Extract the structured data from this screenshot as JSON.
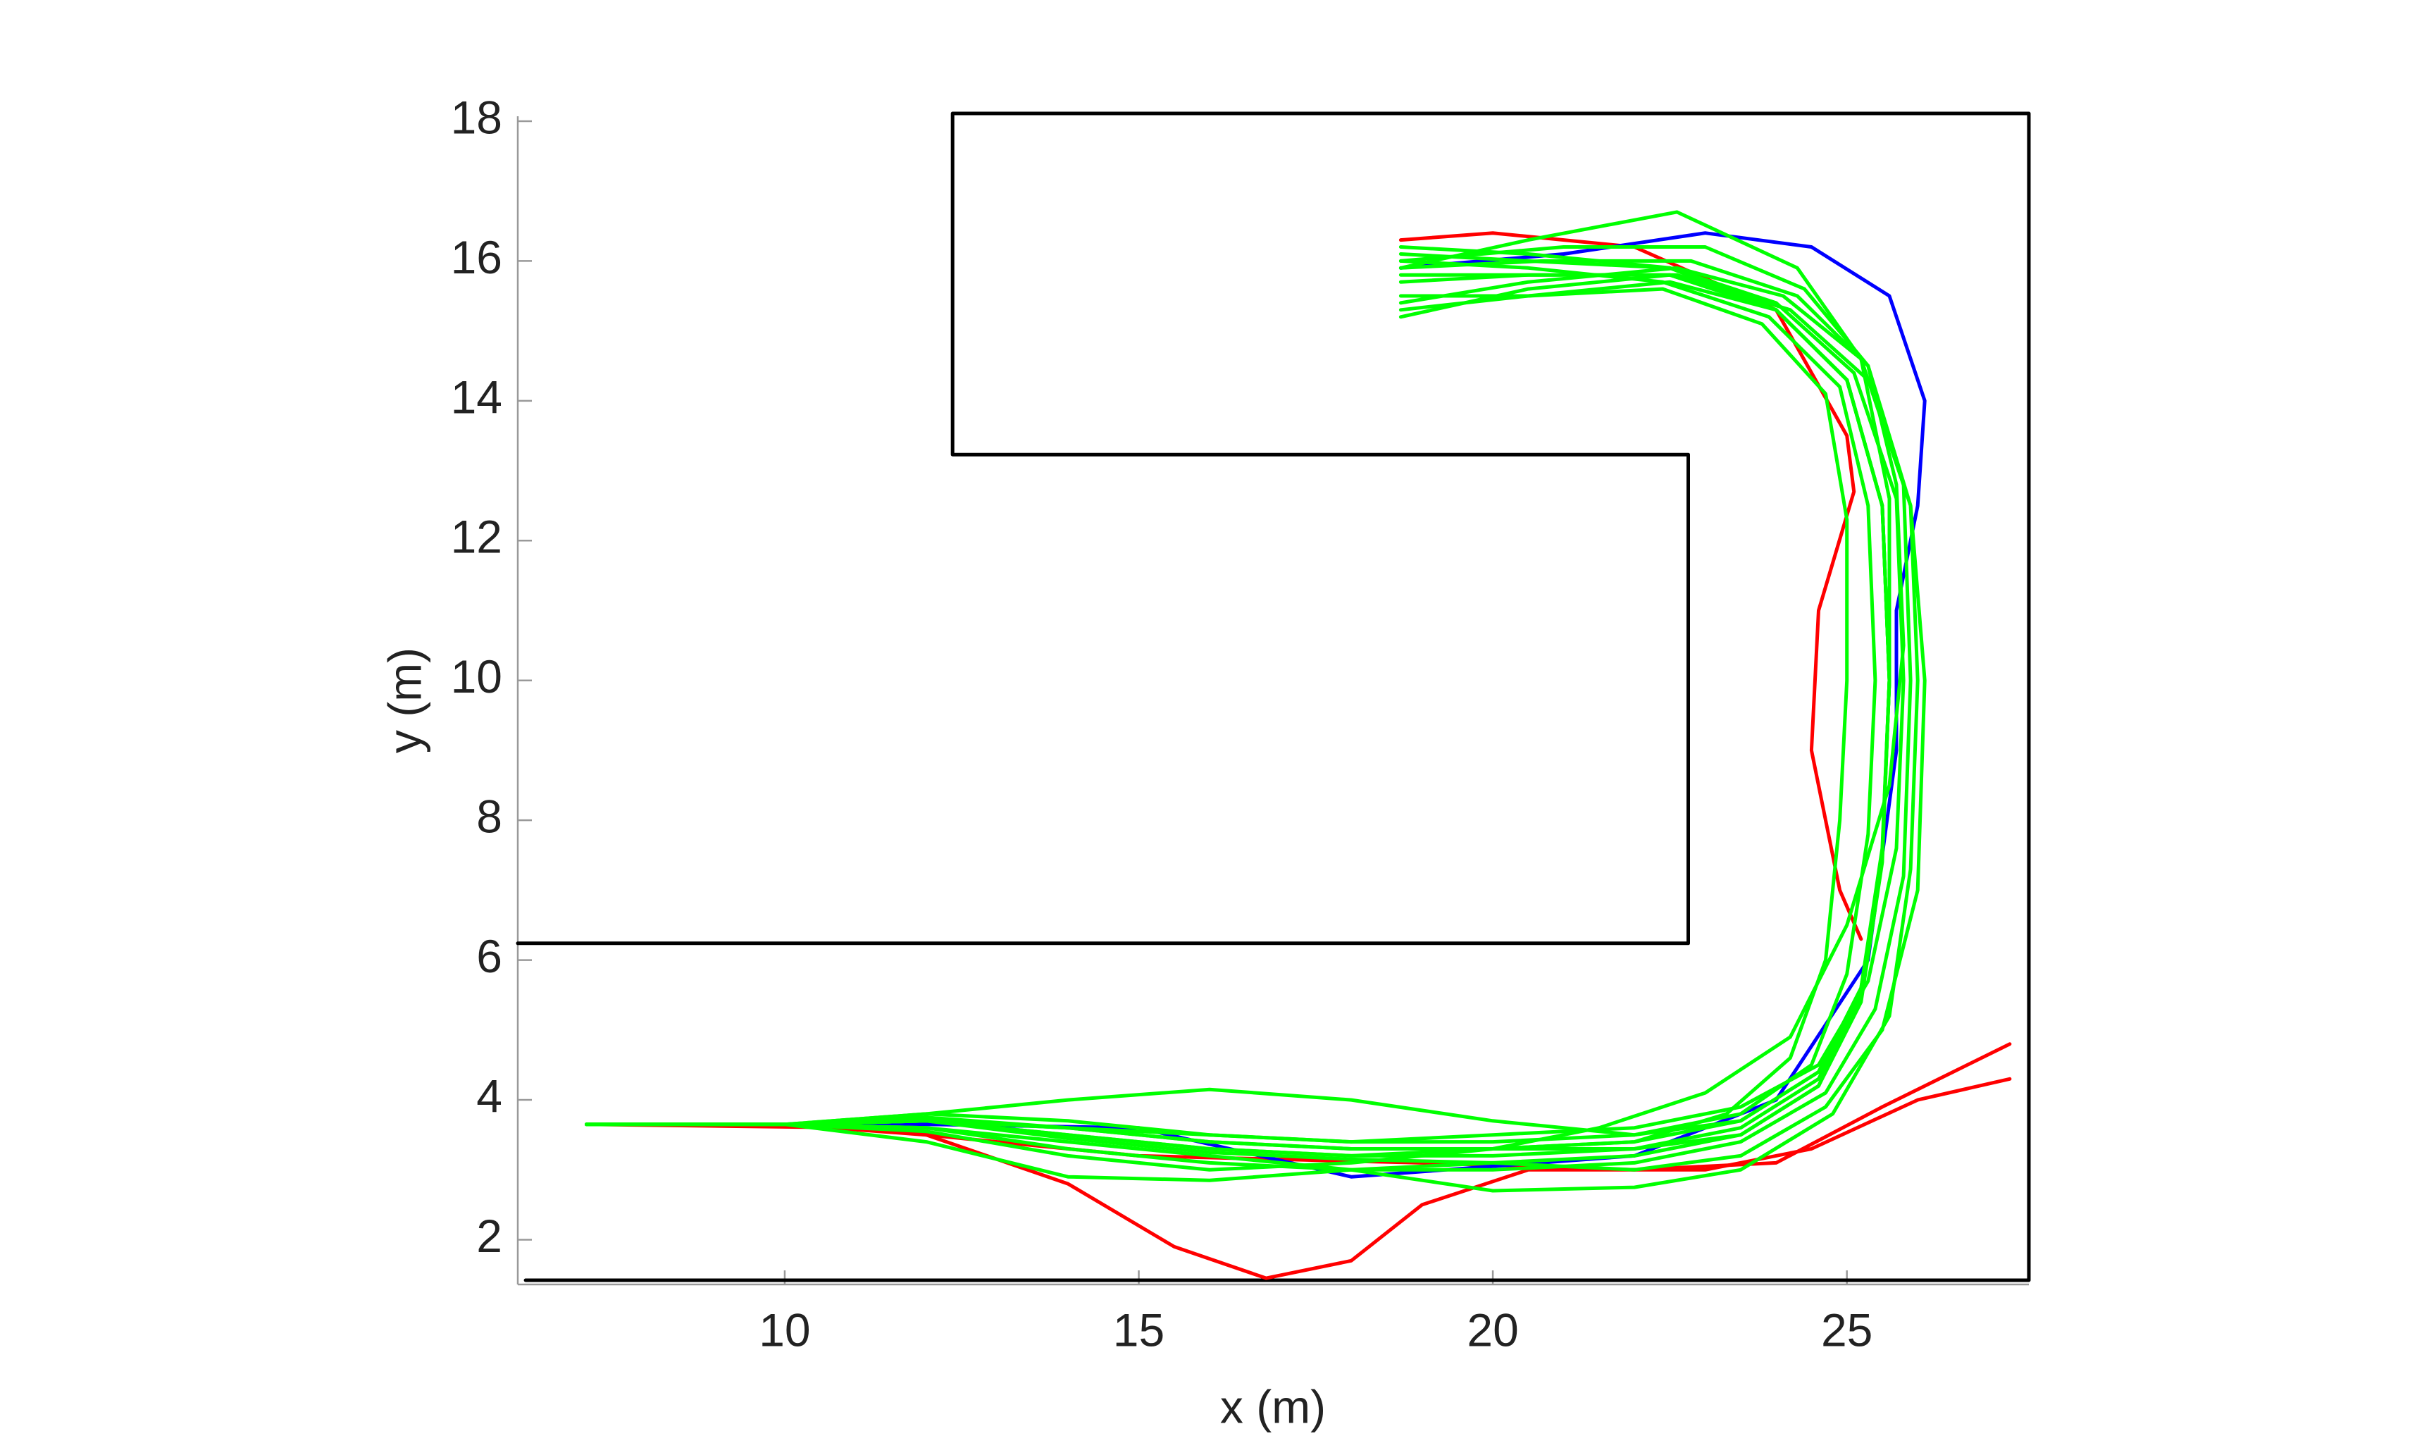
{
  "chart_data": {
    "type": "line",
    "xlabel": "x (m)",
    "ylabel": "y (m)",
    "xlim": [
      6.23,
      27.57
    ],
    "ylim": [
      1.36,
      18.07
    ],
    "xticks": [
      10,
      15,
      20,
      25
    ],
    "yticks": [
      2,
      4,
      6,
      8,
      10,
      12,
      14,
      16,
      18
    ],
    "grid": false,
    "series": [
      {
        "color": "#000000",
        "x": [
          6.23,
          22.76,
          22.76,
          12.37,
          12.37,
          27.57,
          27.57,
          6.34
        ],
        "values": [
          6.24,
          6.24,
          13.23,
          13.23,
          18.11,
          18.11,
          1.42,
          1.42
        ]
      },
      {
        "color": "#ff0000",
        "x": [
          7.2,
          10,
          12,
          14,
          15.5,
          16.8,
          18,
          19,
          20.5,
          23,
          24.5,
          26,
          27.3
        ],
        "values": [
          3.65,
          3.65,
          3.5,
          2.8,
          1.9,
          1.45,
          1.7,
          2.5,
          3.0,
          3.0,
          3.3,
          4.0,
          4.3
        ]
      },
      {
        "color": "#ff0000",
        "x": [
          7.2,
          11,
          15,
          19,
          22,
          24,
          25.5,
          27.3
        ],
        "values": [
          3.65,
          3.6,
          3.2,
          3.1,
          3.0,
          3.1,
          3.9,
          4.8
        ]
      },
      {
        "color": "#ff0000",
        "x": [
          18.7,
          20,
          22,
          24,
          25,
          25.1,
          24.6,
          24.5,
          24.9,
          25.2
        ],
        "values": [
          16.3,
          16.4,
          16.2,
          15.3,
          13.5,
          12.7,
          11,
          9,
          7,
          6.3
        ]
      },
      {
        "color": "#0000ff",
        "x": [
          18.7,
          21,
          23,
          24.5,
          25.6,
          26.1,
          26,
          25.7,
          25.7,
          25.3,
          24,
          22,
          18,
          15,
          12,
          7.2
        ],
        "values": [
          15.9,
          16.1,
          16.4,
          16.2,
          15.5,
          14,
          12.5,
          11,
          9,
          6,
          4,
          3.2,
          2.9,
          3.6,
          3.65,
          3.65
        ]
      },
      {
        "color": "#00ff00",
        "x": [
          7.2,
          10,
          12,
          14,
          16,
          18,
          20,
          22,
          23.5,
          24.6,
          25.2,
          25.5,
          25.6,
          25.5,
          25.0,
          24.0,
          22.5,
          20.5,
          18.7
        ],
        "values": [
          3.65,
          3.65,
          3.7,
          3.5,
          3.3,
          3.2,
          3.2,
          3.3,
          3.6,
          4.3,
          5.5,
          7.5,
          10,
          12.5,
          14.3,
          15.3,
          15.8,
          15.8,
          15.8
        ]
      },
      {
        "color": "#00ff00",
        "x": [
          7.2,
          10,
          12,
          14,
          16,
          18,
          20,
          22,
          23.5,
          24.5,
          25.0,
          25.3,
          25.4,
          25.3,
          24.9,
          23.9,
          22.4,
          20.5,
          18.7
        ],
        "values": [
          3.65,
          3.65,
          3.8,
          3.7,
          3.5,
          3.4,
          3.4,
          3.5,
          3.8,
          4.5,
          5.8,
          7.8,
          10,
          12.5,
          14.2,
          15.2,
          15.7,
          15.9,
          16.0
        ]
      },
      {
        "color": "#00ff00",
        "x": [
          7.2,
          10,
          12,
          14,
          16,
          18,
          20,
          22,
          23.5,
          24.7,
          25.4,
          25.8,
          25.9,
          25.8,
          25.2,
          24.1,
          22.6,
          20.5,
          18.7
        ],
        "values": [
          3.65,
          3.65,
          3.6,
          3.3,
          3.1,
          3.0,
          3.0,
          3.1,
          3.4,
          4.1,
          5.3,
          7.2,
          10,
          12.8,
          14.6,
          15.5,
          15.9,
          15.7,
          15.4
        ]
      },
      {
        "color": "#00ff00",
        "x": [
          7.2,
          10,
          12,
          14,
          16,
          18,
          20,
          22,
          23.5,
          24.6,
          25.2,
          25.5,
          25.6,
          25.5,
          25.0,
          24.0,
          22.5,
          20.5,
          18.7
        ],
        "values": [
          3.65,
          3.65,
          3.8,
          4.0,
          4.15,
          4.0,
          3.7,
          3.5,
          3.7,
          4.4,
          5.6,
          7.6,
          10,
          12.5,
          14.3,
          15.3,
          15.9,
          16.0,
          16.1
        ]
      },
      {
        "color": "#00ff00",
        "x": [
          7.2,
          10,
          12,
          14,
          16,
          18,
          20,
          22,
          23.5,
          24.6,
          25.2,
          25.5,
          25.6,
          25.5,
          25.0,
          24.0,
          22.5,
          20.5,
          18.7
        ],
        "values": [
          3.65,
          3.65,
          3.4,
          2.9,
          2.85,
          3.0,
          3.1,
          3.2,
          3.5,
          4.2,
          5.4,
          7.4,
          10,
          12.5,
          14.3,
          15.3,
          15.8,
          15.6,
          15.2
        ]
      },
      {
        "color": "#00ff00",
        "x": [
          7.2,
          10,
          12,
          14,
          16,
          18,
          20,
          21.5,
          23,
          24.2,
          25.0,
          25.6,
          25.8,
          25.7,
          25.3,
          24.4,
          23.0,
          21,
          18.7
        ],
        "values": [
          3.65,
          3.65,
          3.7,
          3.5,
          3.3,
          3.2,
          3.3,
          3.6,
          4.1,
          4.9,
          6.5,
          8.5,
          10.5,
          12.8,
          14.5,
          15.6,
          16.2,
          16.2,
          16.0
        ]
      },
      {
        "color": "#00ff00",
        "x": [
          7.2,
          10,
          12,
          14,
          16,
          18,
          20,
          22,
          23.5,
          24.8,
          25.6,
          25.9,
          26.0,
          25.9,
          25.3,
          24.2,
          22.6,
          20.5,
          18.7
        ],
        "values": [
          3.65,
          3.65,
          3.6,
          3.4,
          3.2,
          3.0,
          2.7,
          2.75,
          3.0,
          3.8,
          5.2,
          7.3,
          10,
          12.5,
          14.3,
          15.3,
          15.8,
          15.8,
          15.7
        ]
      },
      {
        "color": "#00ff00",
        "x": [
          7.2,
          10,
          12,
          14,
          16,
          18,
          20,
          22,
          23.5,
          24.6,
          25.2,
          25.5,
          25.6,
          25.6,
          25.2,
          24.3,
          22.6,
          20.5,
          18.7
        ],
        "values": [
          3.65,
          3.65,
          3.7,
          3.6,
          3.4,
          3.3,
          3.3,
          3.4,
          3.7,
          4.4,
          5.6,
          7.5,
          10,
          12.6,
          14.6,
          15.9,
          16.7,
          16.3,
          15.9
        ]
      },
      {
        "color": "#00ff00",
        "x": [
          7.2,
          10,
          12,
          14,
          16,
          18,
          20,
          22,
          23.3,
          24.2,
          24.7,
          24.9,
          25.0,
          25.0,
          24.7,
          23.8,
          22.4,
          20.5,
          18.7
        ],
        "values": [
          3.65,
          3.65,
          3.7,
          3.6,
          3.4,
          3.3,
          3.3,
          3.4,
          3.8,
          4.6,
          6.0,
          8.0,
          10,
          12.3,
          14.1,
          15.1,
          15.6,
          15.5,
          15.3
        ]
      },
      {
        "color": "#00ff00",
        "x": [
          7.2,
          10,
          12,
          14,
          16,
          18,
          20,
          22,
          23.5,
          24.6,
          25.3,
          25.7,
          25.8,
          25.7,
          25.1,
          24.0,
          22.5,
          20.5,
          18.7
        ],
        "values": [
          3.65,
          3.65,
          3.75,
          3.6,
          3.5,
          3.4,
          3.5,
          3.6,
          3.9,
          4.5,
          5.7,
          7.6,
          10,
          12.6,
          14.4,
          15.4,
          15.9,
          16.1,
          16.2
        ]
      },
      {
        "color": "#00ff00",
        "x": [
          7.2,
          10,
          12,
          14,
          16,
          18,
          20,
          22,
          23.5,
          24.6,
          25.2,
          25.5,
          25.6,
          25.5,
          25.0,
          24.0,
          22.5,
          20.5,
          18.7
        ],
        "values": [
          3.65,
          3.65,
          3.55,
          3.2,
          3.0,
          3.1,
          3.3,
          3.3,
          3.5,
          4.2,
          5.5,
          7.5,
          10,
          12.5,
          14.3,
          15.3,
          15.7,
          15.5,
          15.5
        ]
      },
      {
        "color": "#00ff00",
        "x": [
          7.2,
          10,
          12,
          14,
          16,
          18,
          20,
          22,
          23.5,
          24.7,
          25.5,
          26.0,
          26.1,
          25.9,
          25.3,
          24.3,
          22.8,
          20.7,
          18.7
        ],
        "values": [
          3.65,
          3.65,
          3.7,
          3.45,
          3.25,
          3.15,
          3.1,
          3.0,
          3.2,
          3.9,
          5.0,
          7.0,
          10,
          12.5,
          14.5,
          15.5,
          16.0,
          16.0,
          15.9
        ]
      }
    ]
  }
}
